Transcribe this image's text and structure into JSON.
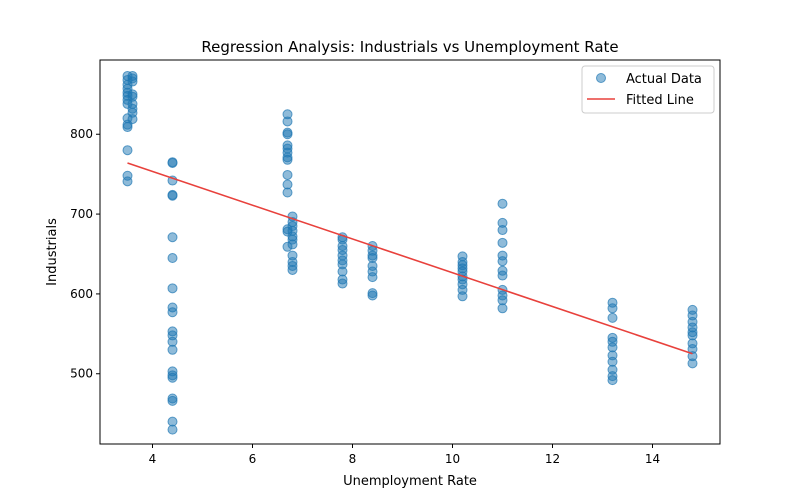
{
  "chart_data": {
    "type": "scatter",
    "title": "Regression Analysis: Industrials vs Unemployment Rate",
    "xlabel": "Unemployment Rate",
    "ylabel": "Industrials",
    "xlim": [
      2.95,
      15.35
    ],
    "ylim": [
      412,
      893
    ],
    "xticks": [
      4,
      6,
      8,
      10,
      12,
      14
    ],
    "yticks": [
      500,
      600,
      700,
      800
    ],
    "grid": false,
    "legend": {
      "placement": "top-right",
      "entries": [
        "Actual Data",
        "Fitted Line"
      ]
    },
    "colors": {
      "points": "#1f77b4",
      "line": "#e8413c"
    },
    "series": [
      {
        "name": "Actual Data",
        "kind": "scatter",
        "points": [
          [
            3.5,
            873
          ],
          [
            3.5,
            868
          ],
          [
            3.5,
            862
          ],
          [
            3.5,
            857
          ],
          [
            3.5,
            852
          ],
          [
            3.5,
            848
          ],
          [
            3.5,
            843
          ],
          [
            3.5,
            838
          ],
          [
            3.5,
            820
          ],
          [
            3.5,
            812
          ],
          [
            3.5,
            809
          ],
          [
            3.5,
            780
          ],
          [
            3.5,
            748
          ],
          [
            3.5,
            741
          ],
          [
            3.6,
            873
          ],
          [
            3.6,
            870
          ],
          [
            3.6,
            866
          ],
          [
            3.6,
            850
          ],
          [
            3.6,
            847
          ],
          [
            3.6,
            838
          ],
          [
            3.6,
            832
          ],
          [
            3.6,
            827
          ],
          [
            3.6,
            819
          ],
          [
            4.4,
            765
          ],
          [
            4.4,
            764
          ],
          [
            4.4,
            742
          ],
          [
            4.4,
            724
          ],
          [
            4.4,
            723
          ],
          [
            4.4,
            671
          ],
          [
            4.4,
            645
          ],
          [
            4.4,
            607
          ],
          [
            4.4,
            583
          ],
          [
            4.4,
            577
          ],
          [
            4.4,
            553
          ],
          [
            4.4,
            548
          ],
          [
            4.4,
            540
          ],
          [
            4.4,
            530
          ],
          [
            4.4,
            503
          ],
          [
            4.4,
            498
          ],
          [
            4.4,
            495
          ],
          [
            4.4,
            469
          ],
          [
            4.4,
            466
          ],
          [
            4.4,
            440
          ],
          [
            4.4,
            430
          ],
          [
            6.7,
            825
          ],
          [
            6.7,
            816
          ],
          [
            6.7,
            802
          ],
          [
            6.7,
            800
          ],
          [
            6.7,
            786
          ],
          [
            6.7,
            782
          ],
          [
            6.7,
            777
          ],
          [
            6.7,
            771
          ],
          [
            6.7,
            768
          ],
          [
            6.7,
            749
          ],
          [
            6.7,
            737
          ],
          [
            6.7,
            727
          ],
          [
            6.7,
            681
          ],
          [
            6.7,
            678
          ],
          [
            6.7,
            659
          ],
          [
            6.8,
            697
          ],
          [
            6.8,
            690
          ],
          [
            6.8,
            685
          ],
          [
            6.8,
            679
          ],
          [
            6.8,
            672
          ],
          [
            6.8,
            668
          ],
          [
            6.8,
            662
          ],
          [
            6.8,
            648
          ],
          [
            6.8,
            640
          ],
          [
            6.8,
            635
          ],
          [
            6.8,
            630
          ],
          [
            7.8,
            671
          ],
          [
            7.8,
            668
          ],
          [
            7.8,
            660
          ],
          [
            7.8,
            655
          ],
          [
            7.8,
            648
          ],
          [
            7.8,
            642
          ],
          [
            7.8,
            637
          ],
          [
            7.8,
            628
          ],
          [
            7.8,
            618
          ],
          [
            7.8,
            613
          ],
          [
            8.4,
            660
          ],
          [
            8.4,
            654
          ],
          [
            8.4,
            648
          ],
          [
            8.4,
            645
          ],
          [
            8.4,
            635
          ],
          [
            8.4,
            628
          ],
          [
            8.4,
            621
          ],
          [
            8.4,
            601
          ],
          [
            8.4,
            598
          ],
          [
            10.2,
            647
          ],
          [
            10.2,
            640
          ],
          [
            10.2,
            636
          ],
          [
            10.2,
            632
          ],
          [
            10.2,
            628
          ],
          [
            10.2,
            622
          ],
          [
            10.2,
            618
          ],
          [
            10.2,
            612
          ],
          [
            10.2,
            605
          ],
          [
            10.2,
            597
          ],
          [
            11.0,
            713
          ],
          [
            11.0,
            689
          ],
          [
            11.0,
            680
          ],
          [
            11.0,
            664
          ],
          [
            11.0,
            648
          ],
          [
            11.0,
            641
          ],
          [
            11.0,
            629
          ],
          [
            11.0,
            623
          ],
          [
            11.0,
            605
          ],
          [
            11.0,
            598
          ],
          [
            11.0,
            592
          ],
          [
            11.0,
            582
          ],
          [
            13.2,
            589
          ],
          [
            13.2,
            582
          ],
          [
            13.2,
            570
          ],
          [
            13.2,
            545
          ],
          [
            13.2,
            540
          ],
          [
            13.2,
            533
          ],
          [
            13.2,
            523
          ],
          [
            13.2,
            515
          ],
          [
            13.2,
            505
          ],
          [
            13.2,
            497
          ],
          [
            13.2,
            492
          ],
          [
            14.8,
            580
          ],
          [
            14.8,
            573
          ],
          [
            14.8,
            565
          ],
          [
            14.8,
            558
          ],
          [
            14.8,
            552
          ],
          [
            14.8,
            548
          ],
          [
            14.8,
            538
          ],
          [
            14.8,
            531
          ],
          [
            14.8,
            522
          ],
          [
            14.8,
            513
          ]
        ]
      },
      {
        "name": "Fitted Line",
        "kind": "line",
        "points": [
          [
            3.5,
            764
          ],
          [
            14.8,
            525
          ]
        ]
      }
    ]
  }
}
